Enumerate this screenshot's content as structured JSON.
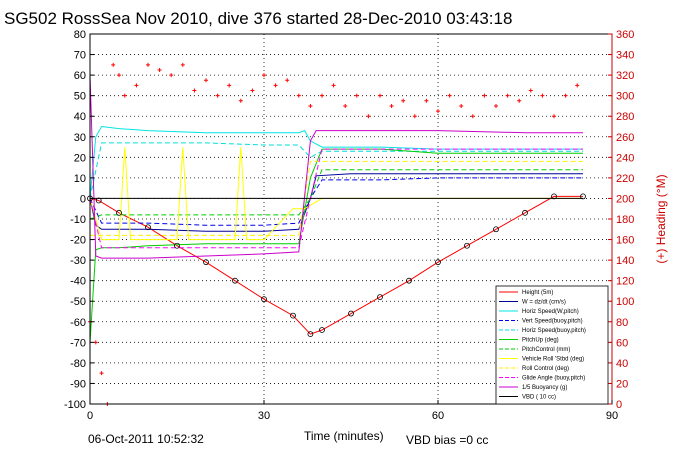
{
  "chart_data": {
    "type": "line",
    "title": "SG502 RossSea Nov 2010, dive 376 started 28-Dec-2010 03:43:18",
    "xlabel": "Time (minutes)",
    "ylabel_right": "(+) Heading (°M)",
    "footer_date": "06-Oct-2011 10:52:32",
    "footer_vbd": "VBD bias =0 cc",
    "xlim": [
      0,
      90
    ],
    "ylim": [
      -100,
      80
    ],
    "y2lim": [
      0,
      360
    ],
    "xticks": [
      "0",
      "30",
      "60",
      "90"
    ],
    "yticks": [
      "-100",
      "-90",
      "-80",
      "-70",
      "-60",
      "-50",
      "-40",
      "-30",
      "-20",
      "-10",
      "0",
      "10",
      "20",
      "30",
      "40",
      "50",
      "60",
      "70",
      "80"
    ],
    "y2ticks": [
      "0",
      "20",
      "40",
      "60",
      "80",
      "100",
      "120",
      "140",
      "160",
      "180",
      "200",
      "220",
      "240",
      "260",
      "280",
      "300",
      "320",
      "340",
      "360"
    ],
    "grid": true,
    "legend_position": "bottom-right",
    "series": [
      {
        "name": "Height (5m)",
        "color": "#ff0000",
        "style": "solid",
        "x": [
          0,
          1.5,
          5,
          10,
          15,
          20,
          25,
          30,
          35,
          38,
          40,
          45,
          50,
          55,
          60,
          65,
          70,
          75,
          80,
          85
        ],
        "y": [
          0,
          -1,
          -7,
          -14,
          -23,
          -31,
          -40,
          -49,
          -57,
          -66,
          -64,
          -56,
          -48,
          -40,
          -31,
          -23,
          -15,
          -7,
          1,
          1
        ]
      },
      {
        "name": "W = dz/dt (cm/s)",
        "color": "#000099",
        "style": "solid",
        "x": [
          0,
          1,
          2,
          5,
          10,
          20,
          30,
          36,
          38,
          39,
          45,
          60,
          75,
          85
        ],
        "y": [
          0,
          -13,
          -15,
          -15,
          -15,
          -16,
          -16,
          -15,
          0,
          11,
          12,
          12,
          12,
          12
        ]
      },
      {
        "name": "Horiz Speed(W,pitch)",
        "color": "#00e5e5",
        "style": "solid",
        "x": [
          0,
          1,
          2,
          5,
          10,
          20,
          30,
          36,
          37,
          38,
          40,
          50,
          60,
          70,
          85
        ],
        "y": [
          0,
          30,
          35,
          34,
          33,
          32,
          32,
          32,
          33,
          28,
          25,
          25,
          24,
          24,
          24
        ]
      },
      {
        "name": "Vert Speed(buoy,pitch)",
        "color": "#0000ee",
        "style": "dashed",
        "x": [
          0,
          2,
          10,
          20,
          30,
          36,
          38,
          40,
          50,
          60,
          70,
          85
        ],
        "y": [
          0,
          -12,
          -12,
          -13,
          -13,
          -12,
          0,
          9,
          9,
          10,
          10,
          10
        ]
      },
      {
        "name": "Horiz Speed(buoy,pitch)",
        "color": "#00dddd",
        "style": "dashed",
        "x": [
          0,
          2,
          10,
          20,
          30,
          36,
          38,
          40,
          60,
          85
        ],
        "y": [
          0,
          27,
          27,
          27,
          26,
          26,
          20,
          23,
          23,
          23
        ]
      },
      {
        "name": "PitchUp (deg)",
        "color": "#00cc00",
        "style": "solid",
        "x": [
          0,
          1,
          2,
          5,
          10,
          20,
          30,
          36,
          38,
          40,
          50,
          60,
          70,
          85
        ],
        "y": [
          -70,
          -25,
          -24,
          -24,
          -23,
          -22,
          -22,
          -22,
          10,
          24,
          24,
          22,
          22,
          22
        ]
      },
      {
        "name": "PitchControl (mm)",
        "color": "#00cc00",
        "style": "dashed",
        "x": [
          0,
          2,
          30,
          36,
          38,
          40,
          60,
          85
        ],
        "y": [
          -10,
          -8,
          -8,
          -8,
          0,
          14,
          14,
          14
        ]
      },
      {
        "name": "Vehicle Roll 'Stbd (deg)",
        "color": "#ffff00",
        "style": "solid",
        "x": [
          0,
          2,
          5,
          6,
          7,
          10,
          15,
          16,
          17,
          20,
          25,
          26,
          27,
          30,
          35,
          37,
          40,
          45,
          50,
          55,
          60,
          65,
          70,
          75,
          80,
          85
        ],
        "y": [
          0,
          -20,
          -20,
          25,
          -20,
          -20,
          -20,
          25,
          -20,
          -20,
          -20,
          25,
          -20,
          -20,
          -5,
          -5,
          0,
          0,
          0,
          0,
          0,
          0,
          0,
          0,
          0,
          0
        ]
      },
      {
        "name": "Roll Control (deg)",
        "color": "#ffee00",
        "style": "dashed",
        "x": [
          0,
          36,
          38,
          85
        ],
        "y": [
          -18,
          -18,
          18,
          18
        ]
      },
      {
        "name": "Glide Angle (buoy,pitch)",
        "color": "#ff00ff",
        "style": "dashed",
        "x": [
          0,
          2,
          36,
          38,
          40,
          85
        ],
        "y": [
          0,
          -24,
          -24,
          0,
          24,
          24
        ]
      },
      {
        "name": "1/5 Buoyancy (g)",
        "color": "#cc00cc",
        "style": "solid",
        "x": [
          0,
          1,
          2,
          5,
          10,
          20,
          30,
          36,
          38,
          39,
          45,
          60,
          75,
          85
        ],
        "y": [
          60,
          -28,
          -29,
          -29,
          -29,
          -28,
          -27,
          -26,
          28,
          33,
          33,
          33,
          32,
          32
        ]
      },
      {
        "name": "VBD ( 10 cc)",
        "color": "#000000",
        "style": "solid",
        "x": [
          0,
          1,
          2,
          37,
          38,
          85
        ],
        "y": [
          0,
          0,
          0,
          0,
          0,
          0
        ]
      }
    ],
    "heading_series": {
      "name": "Heading",
      "color": "#ff0000",
      "axis": "right",
      "x": [
        0,
        1,
        2,
        3,
        4,
        5,
        6,
        8,
        10,
        12,
        14,
        16,
        18,
        20,
        22,
        24,
        26,
        28,
        30,
        32,
        34,
        36,
        38,
        40,
        42,
        44,
        46,
        48,
        50,
        52,
        54,
        56,
        58,
        60,
        62,
        64,
        66,
        68,
        70,
        72,
        74,
        76,
        78,
        80,
        82,
        84
      ],
      "y": [
        80,
        60,
        30,
        0,
        330,
        320,
        300,
        310,
        330,
        325,
        320,
        330,
        305,
        315,
        300,
        310,
        295,
        305,
        320,
        310,
        315,
        300,
        290,
        300,
        310,
        290,
        300,
        280,
        300,
        290,
        295,
        280,
        295,
        285,
        300,
        290,
        280,
        300,
        290,
        300,
        295,
        305,
        300,
        280,
        300,
        310
      ]
    },
    "legend": [
      "Height (5m)",
      "W = dz/dt (cm/s)",
      "Horiz Speed(W,pitch)",
      "Vert Speed(buoy,pitch)",
      "Horiz Speed(buoy,pitch)",
      "PitchUp (deg)",
      "PitchControl (mm)",
      "Vehicle Roll 'Stbd (deg)",
      "Roll Control (deg)",
      "Glide Angle (buoy,pitch)",
      "1/5 Buoyancy (g)",
      "VBD ( 10 cc)"
    ]
  }
}
